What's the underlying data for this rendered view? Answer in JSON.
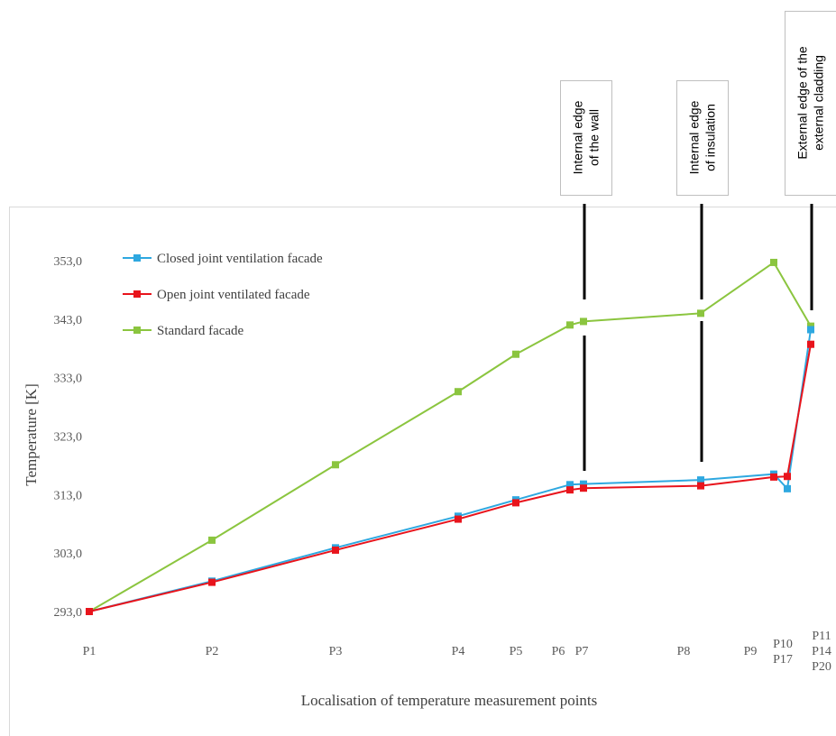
{
  "chart_data": {
    "type": "line",
    "xlabel": "Localisation of temperature measurement points",
    "ylabel": "Temperature [K]",
    "ylim": [
      293,
      353
    ],
    "yticks": [
      "293,0",
      "303,0",
      "313,0",
      "323,0",
      "333,0",
      "343,0",
      "353,0"
    ],
    "grid": false,
    "legend_position": "top-left",
    "x_tick_labels": [
      [
        "P1"
      ],
      [
        "P2"
      ],
      [
        "P3"
      ],
      [
        "P4"
      ],
      [
        "P5"
      ],
      [
        "P6"
      ],
      [
        "P7"
      ],
      [
        "P8"
      ],
      [
        "P9"
      ],
      [
        "P10",
        "P17"
      ],
      [
        "P11",
        "P14",
        "P20"
      ]
    ],
    "series": [
      {
        "name": "Closed joint ventilation facade",
        "color": "#2EA8E0",
        "values": [
          293.0,
          298.2,
          303.9,
          309.3,
          312.1,
          314.7,
          314.8,
          315.5,
          316.5,
          314.0,
          341.2
        ]
      },
      {
        "name": "Open joint ventilated facade",
        "color": "#E8141C",
        "values": [
          293.0,
          298.0,
          303.5,
          308.8,
          311.6,
          313.8,
          314.1,
          314.5,
          316.0,
          316.1,
          338.7
        ]
      },
      {
        "name": "Standard facade",
        "color": "#8BC53F",
        "values": [
          293.0,
          305.2,
          318.1,
          330.6,
          337.0,
          342.0,
          342.6,
          344.0,
          352.7,
          341.8
        ]
      }
    ],
    "annotations": [
      {
        "lines": [
          "Internal edge",
          "of the wall"
        ],
        "at": "P7"
      },
      {
        "lines": [
          "Internal edge",
          "of insulation"
        ],
        "at": "P8"
      },
      {
        "lines": [
          "External edge of the",
          "external cladding"
        ],
        "at": "P11 P14 P20"
      }
    ]
  }
}
